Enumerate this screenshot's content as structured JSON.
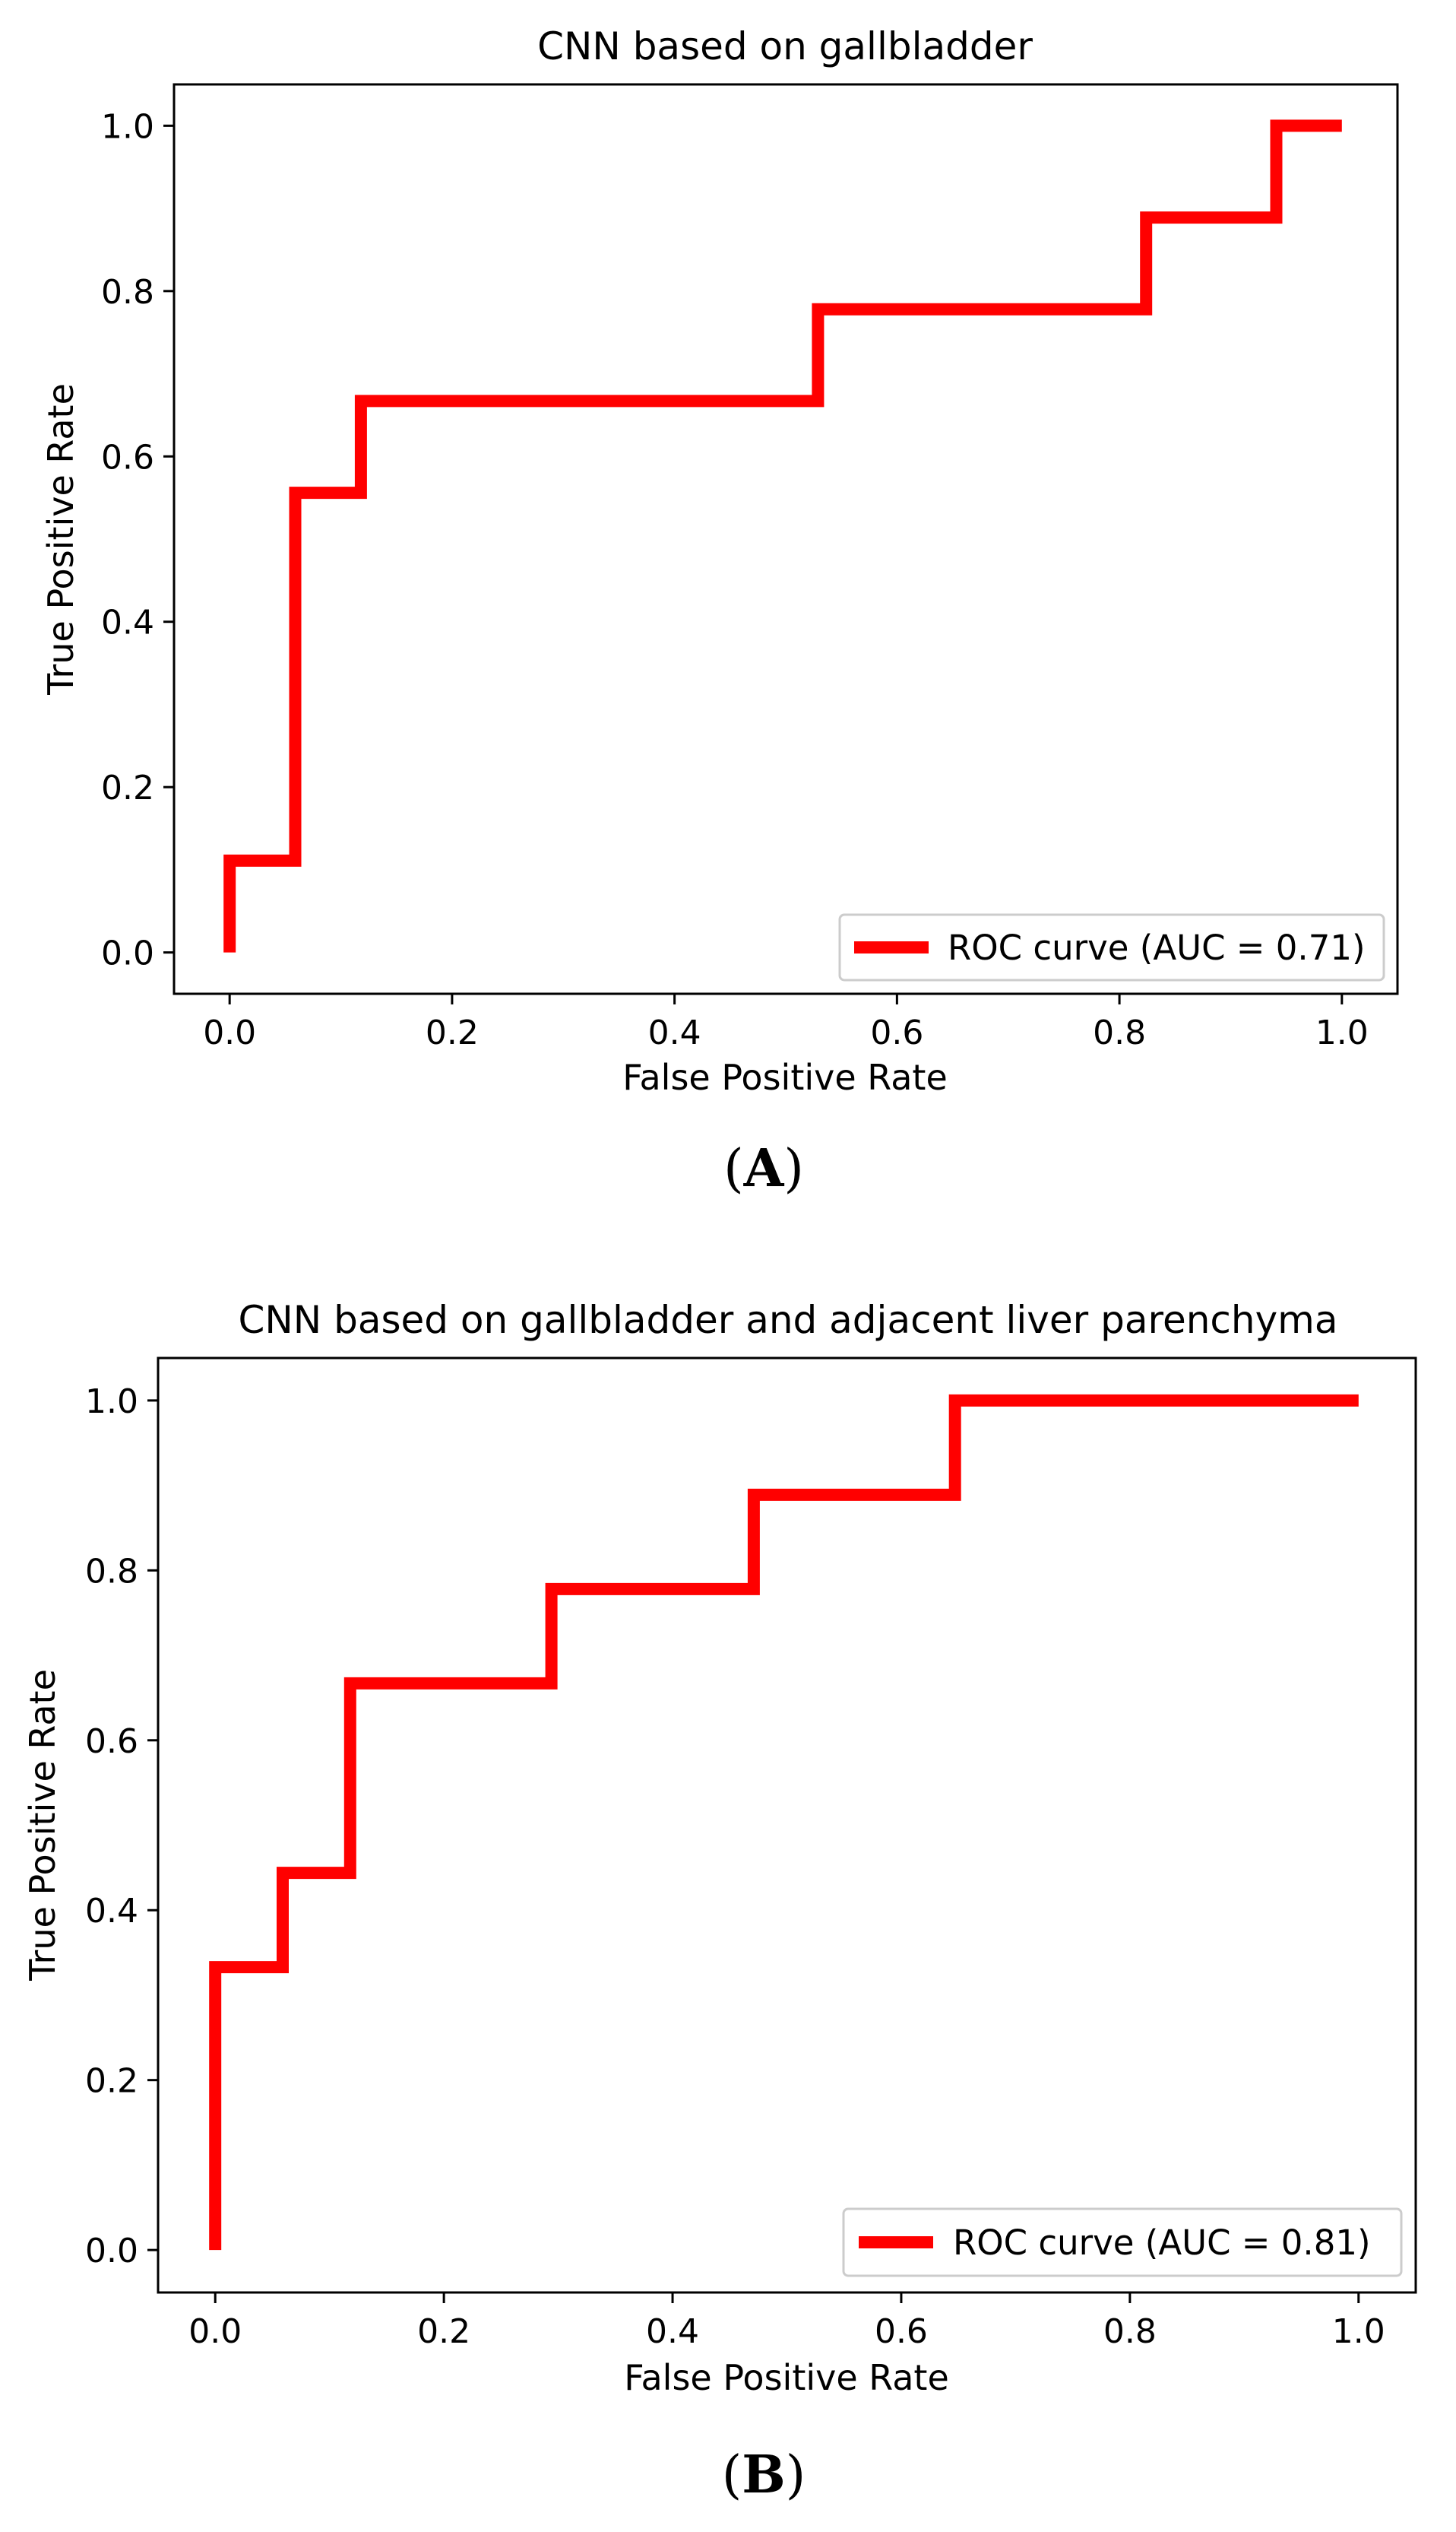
{
  "chart_data": [
    {
      "type": "line",
      "panel_label": "A",
      "title": "CNN based on gallbladder",
      "xlabel": "False Positive Rate",
      "ylabel": "True Positive Rate",
      "xlim": [
        -0.05,
        1.05
      ],
      "ylim": [
        -0.05,
        1.05
      ],
      "xticks": [
        0.0,
        0.2,
        0.4,
        0.6,
        0.8,
        1.0
      ],
      "yticks": [
        0.0,
        0.2,
        0.4,
        0.6,
        0.8,
        1.0
      ],
      "xtick_labels": [
        "0.0",
        "0.2",
        "0.4",
        "0.6",
        "0.8",
        "1.0"
      ],
      "ytick_labels": [
        "0.0",
        "0.2",
        "0.4",
        "0.6",
        "0.8",
        "1.0"
      ],
      "grid": false,
      "legend_position": "bottom-right",
      "series": [
        {
          "name": "ROC curve (AUC = 0.71)",
          "color": "#ff0000",
          "x": [
            0.0,
            0.0,
            0.059,
            0.059,
            0.118,
            0.118,
            0.529,
            0.529,
            0.824,
            0.824,
            0.941,
            0.941,
            1.0
          ],
          "y": [
            0.0,
            0.111,
            0.111,
            0.556,
            0.556,
            0.667,
            0.667,
            0.778,
            0.778,
            0.889,
            0.889,
            1.0,
            1.0
          ]
        }
      ]
    },
    {
      "type": "line",
      "panel_label": "B",
      "title": "CNN based on gallbladder and adjacent liver parenchyma",
      "xlabel": "False Positive Rate",
      "ylabel": "True Positive Rate",
      "xlim": [
        -0.05,
        1.05
      ],
      "ylim": [
        -0.05,
        1.05
      ],
      "xticks": [
        0.0,
        0.2,
        0.4,
        0.6,
        0.8,
        1.0
      ],
      "yticks": [
        0.0,
        0.2,
        0.4,
        0.6,
        0.8,
        1.0
      ],
      "xtick_labels": [
        "0.0",
        "0.2",
        "0.4",
        "0.6",
        "0.8",
        "1.0"
      ],
      "ytick_labels": [
        "0.0",
        "0.2",
        "0.4",
        "0.6",
        "0.8",
        "1.0"
      ],
      "grid": false,
      "legend_position": "bottom-right",
      "series": [
        {
          "name": "ROC curve (AUC = 0.81)",
          "color": "#ff0000",
          "x": [
            0.0,
            0.0,
            0.059,
            0.059,
            0.118,
            0.118,
            0.294,
            0.294,
            0.471,
            0.471,
            0.647,
            0.647,
            1.0
          ],
          "y": [
            0.0,
            0.333,
            0.333,
            0.444,
            0.444,
            0.667,
            0.667,
            0.778,
            0.778,
            0.889,
            0.889,
            1.0,
            1.0
          ]
        }
      ]
    }
  ]
}
